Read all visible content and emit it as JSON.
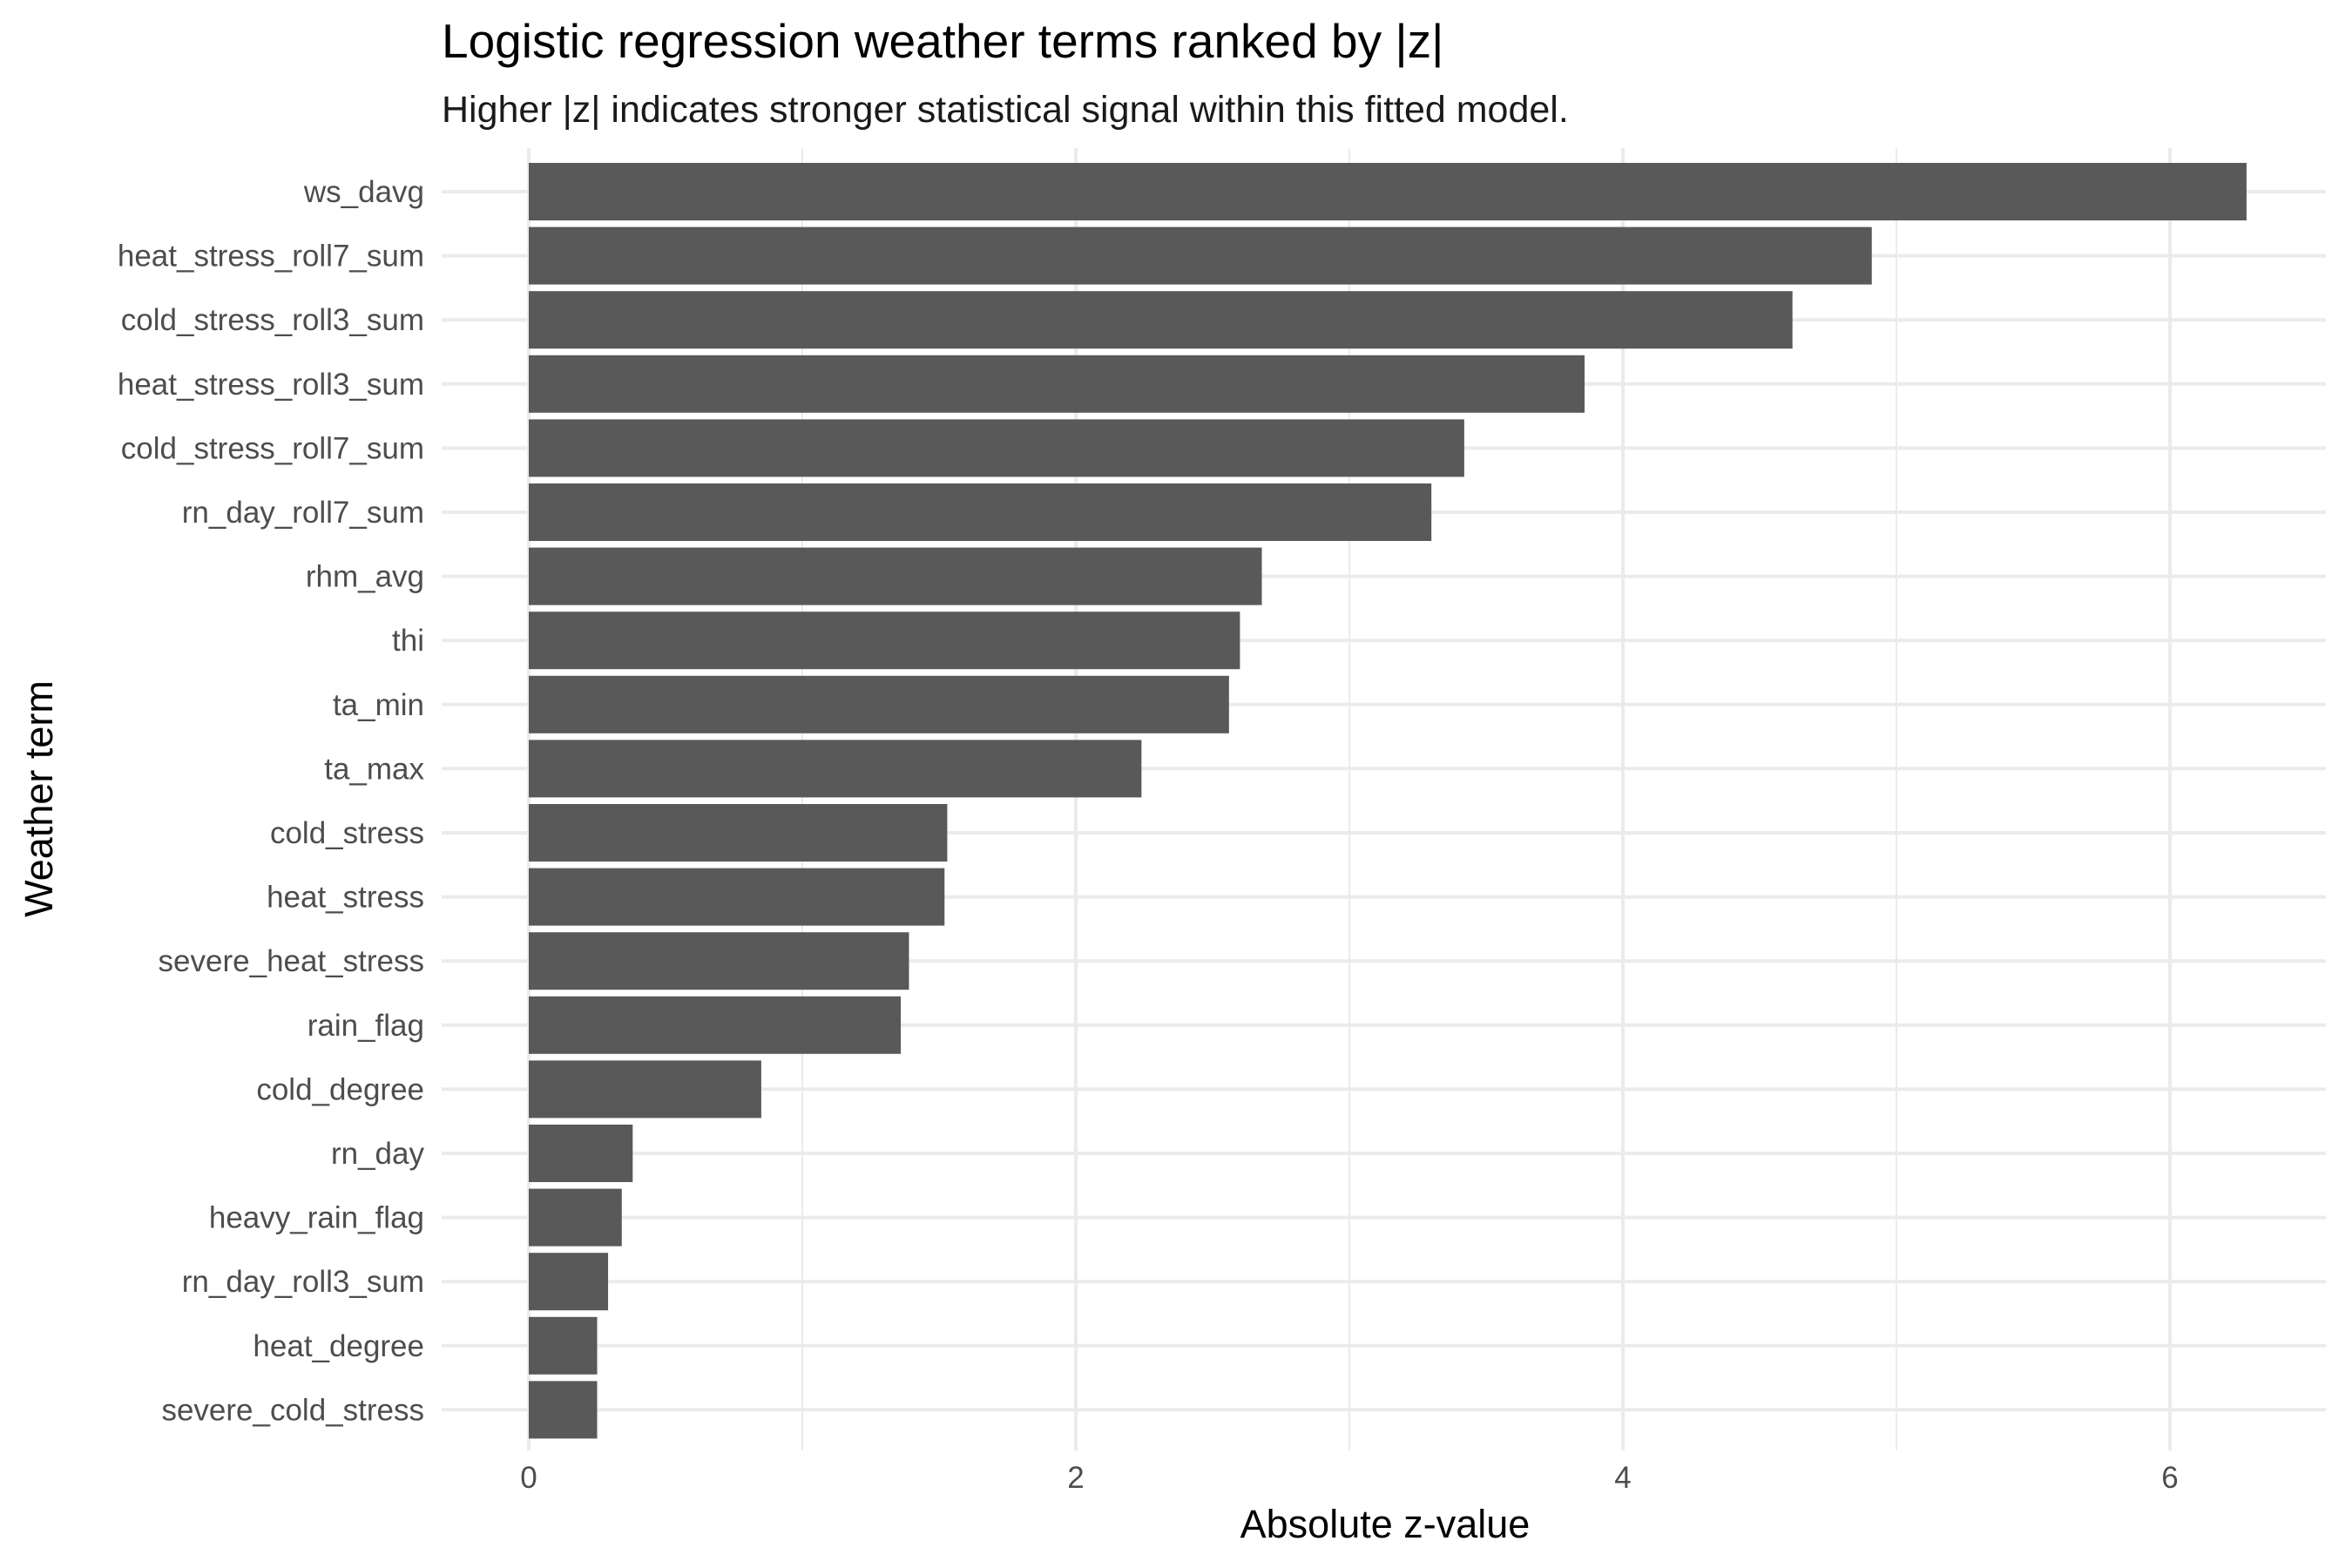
{
  "chart_data": {
    "type": "bar",
    "orientation": "horizontal",
    "title": "Logistic regression weather terms ranked by |z|",
    "subtitle": "Higher |z| indicates stronger statistical signal within this fitted model.",
    "xlabel": "Absolute z-value",
    "ylabel": "Weather term",
    "xlim": [
      0,
      6.6
    ],
    "xticks": [
      0,
      2,
      4,
      6
    ],
    "grid": true,
    "legend": "none",
    "bar_color": "#595959",
    "categories": [
      "ws_davg",
      "heat_stress_roll7_sum",
      "cold_stress_roll3_sum",
      "heat_stress_roll3_sum",
      "cold_stress_roll7_sum",
      "rn_day_roll7_sum",
      "rhm_avg",
      "thi",
      "ta_min",
      "ta_max",
      "cold_stress",
      "heat_stress",
      "severe_heat_stress",
      "rain_flag",
      "cold_degree",
      "rn_day",
      "heavy_rain_flag",
      "rn_day_roll3_sum",
      "heat_degree",
      "severe_cold_stress"
    ],
    "values": [
      6.28,
      4.91,
      4.62,
      3.86,
      3.42,
      3.3,
      2.68,
      2.6,
      2.56,
      2.24,
      1.53,
      1.52,
      1.39,
      1.36,
      0.85,
      0.38,
      0.34,
      0.29,
      0.25,
      0.25
    ]
  }
}
